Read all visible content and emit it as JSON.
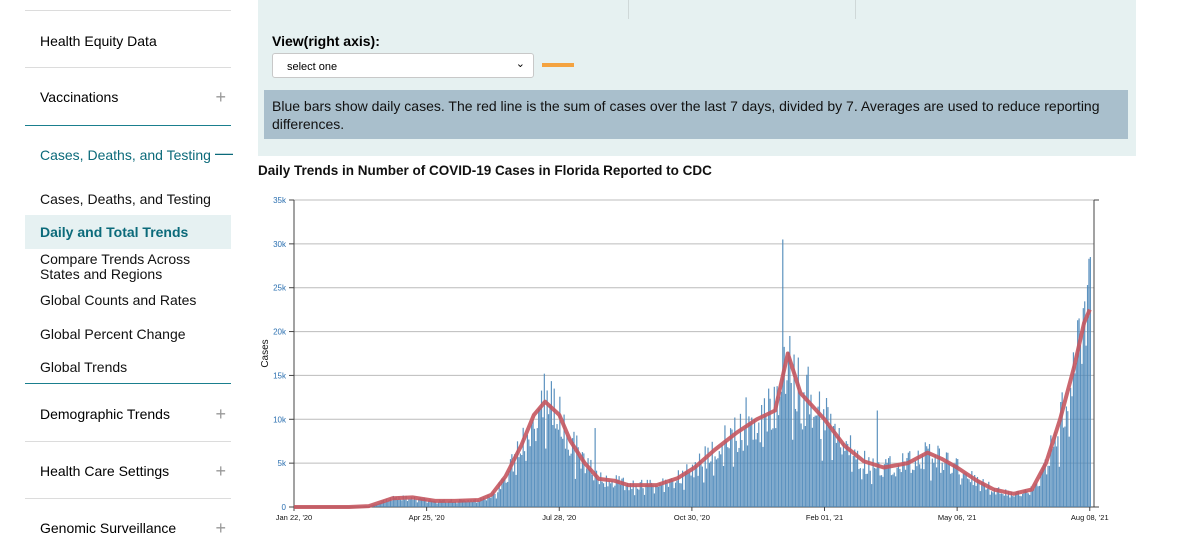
{
  "sidebar": {
    "sections": [
      {
        "label": "Health Equity Data"
      },
      {
        "label": "Vaccinations",
        "toggle": "+"
      },
      {
        "label": "Cases, Deaths, and Testing",
        "toggle": "—"
      },
      {
        "label": "Demographic Trends",
        "toggle": "+"
      },
      {
        "label": "Health Care Settings",
        "toggle": "+"
      },
      {
        "label": "Genomic Surveillance",
        "toggle": "+"
      }
    ],
    "subitems": [
      {
        "label": "Cases, Deaths, and Testing"
      },
      {
        "label": "Daily and Total Trends",
        "active": true
      },
      {
        "label": "Compare Trends Across"
      },
      {
        "label": "States and Regions"
      },
      {
        "label": "Global Counts and Rates"
      },
      {
        "label": "Global Percent Change"
      },
      {
        "label": "Global Trends"
      }
    ]
  },
  "controls": {
    "view_label": "View(right axis):",
    "select_value": "select one",
    "chevron": "⌄",
    "note": "Blue bars show daily cases. The red line is the sum of cases over the last 7 days, divided by 7. Averages are used to reduce reporting differences."
  },
  "colors": {
    "bars": "#4a86b8",
    "line": "#c5565f",
    "swatch": "#f4a340",
    "accent": "#0b6a7a"
  },
  "chart_data": {
    "type": "bar",
    "title": "Daily Trends in Number of COVID-19 Cases in Florida Reported to CDC",
    "ylabel": "Cases",
    "ylim": [
      0,
      35000
    ],
    "yticks": [
      0,
      5000,
      10000,
      15000,
      20000,
      25000,
      30000,
      35000
    ],
    "ytick_labels": [
      "0",
      "5k",
      "10k",
      "15k",
      "20k",
      "25k",
      "30k",
      "35k"
    ],
    "xlim": [
      "2020-01-22",
      "2021-08-11"
    ],
    "xticks": [
      "2020-01-22",
      "2020-04-25",
      "2020-07-28",
      "2020-10-30",
      "2021-02-01",
      "2021-05-06",
      "2021-08-08"
    ],
    "xtick_labels": [
      "Jan 22, '20",
      "Apr 25, '20",
      "Jul 28, '20",
      "Oct 30, '20",
      "Feb 01, '21",
      "May 06, '21",
      "Aug 08, '21"
    ],
    "grid": true,
    "series": [
      {
        "kind": "bar",
        "points": [
          [
            "2020-01-22",
            0
          ],
          [
            "2020-03-01",
            0
          ],
          [
            "2020-03-15",
            100
          ],
          [
            "2020-04-01",
            1000
          ],
          [
            "2020-04-15",
            1100
          ],
          [
            "2020-05-01",
            700
          ],
          [
            "2020-05-15",
            700
          ],
          [
            "2020-06-01",
            800
          ],
          [
            "2020-06-10",
            1400
          ],
          [
            "2020-06-20",
            3500
          ],
          [
            "2020-07-01",
            7000
          ],
          [
            "2020-07-10",
            10500
          ],
          [
            "2020-07-18",
            12000
          ],
          [
            "2020-07-28",
            10500
          ],
          [
            "2020-08-05",
            7500
          ],
          [
            "2020-08-15",
            5000
          ],
          [
            "2020-08-25",
            3200
          ],
          [
            "2020-09-05",
            3000
          ],
          [
            "2020-09-15",
            2500
          ],
          [
            "2020-09-25",
            2500
          ],
          [
            "2020-10-05",
            2500
          ],
          [
            "2020-10-20",
            3300
          ],
          [
            "2020-11-01",
            4500
          ],
          [
            "2020-11-15",
            6500
          ],
          [
            "2020-12-01",
            8500
          ],
          [
            "2020-12-15",
            10000
          ],
          [
            "2020-12-28",
            11000
          ],
          [
            "2021-01-06",
            17500
          ],
          [
            "2021-01-15",
            13000
          ],
          [
            "2021-02-01",
            10000
          ],
          [
            "2021-02-15",
            7000
          ],
          [
            "2021-03-01",
            5200
          ],
          [
            "2021-03-15",
            4500
          ],
          [
            "2021-04-01",
            5000
          ],
          [
            "2021-04-15",
            6200
          ],
          [
            "2021-04-25",
            5500
          ],
          [
            "2021-05-06",
            4500
          ],
          [
            "2021-05-20",
            3000
          ],
          [
            "2021-06-01",
            2000
          ],
          [
            "2021-06-15",
            1500
          ],
          [
            "2021-06-28",
            2000
          ],
          [
            "2021-07-08",
            5000
          ],
          [
            "2021-07-18",
            10000
          ],
          [
            "2021-07-28",
            16000
          ],
          [
            "2021-08-04",
            21000
          ],
          [
            "2021-08-08",
            22500
          ]
        ]
      },
      {
        "kind": "line",
        "points": [
          [
            "2020-01-22",
            0
          ],
          [
            "2020-03-01",
            0
          ],
          [
            "2020-03-15",
            100
          ],
          [
            "2020-04-01",
            1000
          ],
          [
            "2020-04-15",
            1100
          ],
          [
            "2020-05-01",
            700
          ],
          [
            "2020-05-15",
            700
          ],
          [
            "2020-06-01",
            800
          ],
          [
            "2020-06-10",
            1400
          ],
          [
            "2020-06-20",
            3500
          ],
          [
            "2020-07-01",
            7000
          ],
          [
            "2020-07-10",
            10500
          ],
          [
            "2020-07-18",
            12000
          ],
          [
            "2020-07-28",
            10500
          ],
          [
            "2020-08-05",
            7500
          ],
          [
            "2020-08-15",
            5000
          ],
          [
            "2020-08-25",
            3200
          ],
          [
            "2020-09-05",
            3000
          ],
          [
            "2020-09-15",
            2500
          ],
          [
            "2020-09-25",
            2500
          ],
          [
            "2020-10-05",
            2500
          ],
          [
            "2020-10-20",
            3300
          ],
          [
            "2020-11-01",
            4500
          ],
          [
            "2020-11-15",
            6500
          ],
          [
            "2020-12-01",
            8500
          ],
          [
            "2020-12-15",
            10000
          ],
          [
            "2020-12-28",
            11000
          ],
          [
            "2021-01-06",
            17500
          ],
          [
            "2021-01-15",
            13000
          ],
          [
            "2021-02-01",
            10000
          ],
          [
            "2021-02-15",
            7000
          ],
          [
            "2021-03-01",
            5200
          ],
          [
            "2021-03-15",
            4500
          ],
          [
            "2021-04-01",
            5000
          ],
          [
            "2021-04-15",
            6200
          ],
          [
            "2021-04-25",
            5500
          ],
          [
            "2021-05-06",
            4500
          ],
          [
            "2021-05-20",
            3000
          ],
          [
            "2021-06-01",
            2000
          ],
          [
            "2021-06-15",
            1500
          ],
          [
            "2021-06-28",
            2000
          ],
          [
            "2021-07-08",
            5000
          ],
          [
            "2021-07-18",
            10000
          ],
          [
            "2021-07-28",
            16000
          ],
          [
            "2021-08-04",
            21000
          ],
          [
            "2021-08-08",
            22500
          ]
        ]
      }
    ],
    "spikes": [
      [
        "2020-07-17",
        15200
      ],
      [
        "2020-07-24",
        13500
      ],
      [
        "2020-08-22",
        9000
      ],
      [
        "2020-12-07",
        12500
      ],
      [
        "2020-12-20",
        12400
      ],
      [
        "2021-01-02",
        30500
      ],
      [
        "2021-01-07",
        19500
      ],
      [
        "2021-01-20",
        16000
      ],
      [
        "2021-03-10",
        11000
      ],
      [
        "2021-07-31",
        21500
      ],
      [
        "2021-08-07",
        28300
      ],
      [
        "2021-08-08",
        28500
      ]
    ]
  }
}
